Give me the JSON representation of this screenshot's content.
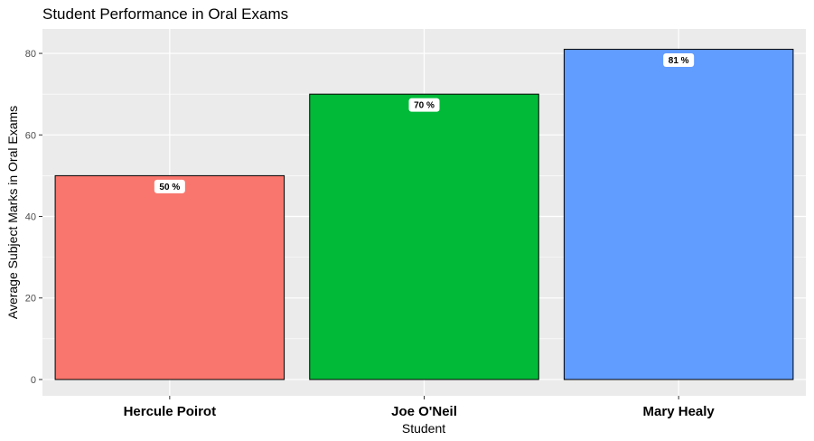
{
  "chart_data": {
    "type": "bar",
    "title": "Student Performance in Oral Exams",
    "xlabel": "Student",
    "ylabel": "Average Subject Marks in Oral Exams",
    "categories": [
      "Hercule Poirot",
      "Joe O'Neil",
      "Mary Healy"
    ],
    "values": [
      50,
      70,
      81
    ],
    "data_labels": [
      "50 %",
      "70 %",
      "81 %"
    ],
    "colors": [
      "#F8766D",
      "#00BA38",
      "#619CFF"
    ],
    "yticks": [
      0,
      20,
      40,
      60,
      80
    ],
    "ylim": [
      -4,
      86
    ],
    "grid": true,
    "legend": "none"
  }
}
